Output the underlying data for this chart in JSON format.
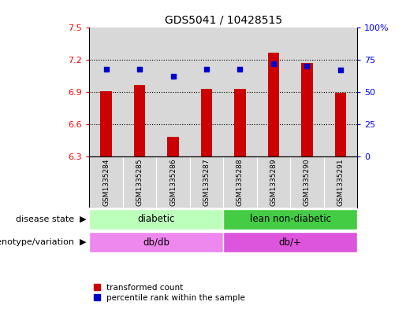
{
  "title": "GDS5041 / 10428515",
  "samples": [
    "GSM1335284",
    "GSM1335285",
    "GSM1335286",
    "GSM1335287",
    "GSM1335288",
    "GSM1335289",
    "GSM1335290",
    "GSM1335291"
  ],
  "red_values": [
    6.91,
    6.97,
    6.48,
    6.93,
    6.93,
    7.27,
    7.17,
    6.89
  ],
  "blue_values": [
    68,
    68,
    62,
    68,
    68,
    72,
    70,
    67
  ],
  "ylim_left": [
    6.3,
    7.5
  ],
  "ylim_right": [
    0,
    100
  ],
  "yticks_left": [
    6.3,
    6.6,
    6.9,
    7.2,
    7.5
  ],
  "yticks_right": [
    0,
    25,
    50,
    75,
    100
  ],
  "ytick_labels_left": [
    "6.3",
    "6.6",
    "6.9",
    "7.2",
    "7.5"
  ],
  "ytick_labels_right": [
    "0",
    "25",
    "50",
    "75",
    "100%"
  ],
  "bar_color": "#cc0000",
  "dot_color": "#0000cc",
  "disease_state_groups": [
    {
      "label": "diabetic",
      "start": 0,
      "end": 4,
      "color": "#bbffbb"
    },
    {
      "label": "lean non-diabetic",
      "start": 4,
      "end": 8,
      "color": "#44cc44"
    }
  ],
  "genotype_groups": [
    {
      "label": "db/db",
      "start": 0,
      "end": 4,
      "color": "#ee88ee"
    },
    {
      "label": "db/+",
      "start": 4,
      "end": 8,
      "color": "#dd55dd"
    }
  ],
  "disease_label": "disease state",
  "genotype_label": "genotype/variation",
  "legend_red": "transformed count",
  "legend_blue": "percentile rank within the sample",
  "bg_color": "#d8d8d8",
  "bar_width": 0.35,
  "gridline_values": [
    6.6,
    6.9,
    7.2
  ]
}
